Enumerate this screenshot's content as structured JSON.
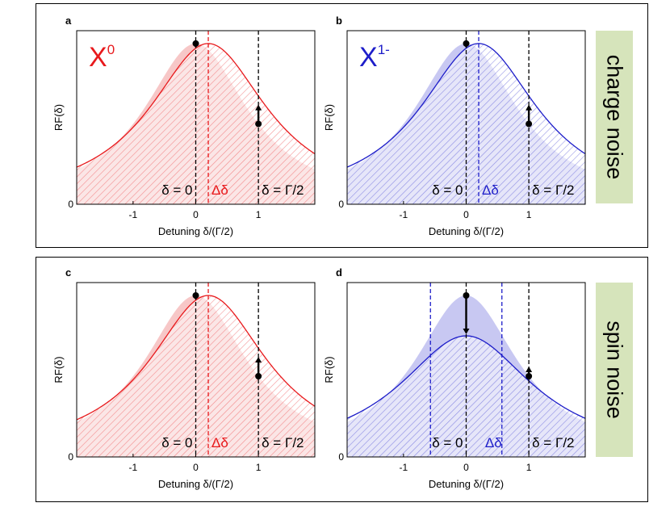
{
  "chart_data": [
    {
      "panel": "a",
      "type": "line",
      "series_color": "#e8191c",
      "fill_color": "#f7c7c7",
      "species_base": "X",
      "species_sup": "0",
      "ylabel": "RF(δ)",
      "xlabel": "Detuning δ/(Γ/2)",
      "xlim": [
        -1.9,
        1.9
      ],
      "ylim": [
        0,
        1.08
      ],
      "xticks": [
        {
          "v": -1,
          "label": "-1"
        },
        {
          "v": 0,
          "label": "0"
        },
        {
          "v": 1,
          "label": "1"
        }
      ],
      "yticks": [
        {
          "v": 0,
          "label": "0"
        }
      ],
      "filled_curve": {
        "center": 0,
        "height": 1.0,
        "width": 1.0
      },
      "line_curve": {
        "center": 0.2,
        "height": 1.0,
        "width": 1.15
      },
      "dashed_lines": [
        {
          "x": 0,
          "color": "#000000"
        },
        {
          "x": 0.2,
          "color": "#e8191c"
        },
        {
          "x": 1,
          "color": "#000000"
        }
      ],
      "arrows": [
        {
          "x": 0,
          "from": 1.0,
          "to": 0.97
        },
        {
          "x": 1,
          "from": 0.5,
          "to": 0.62
        }
      ],
      "annotations": [
        {
          "x": 0,
          "y": 0.06,
          "text": "δ = 0",
          "color": "#000000",
          "anchor": "end"
        },
        {
          "x": 0.2,
          "y": 0.06,
          "text": "Δδ",
          "color": "#e8191c",
          "anchor": "start"
        },
        {
          "x": 1,
          "y": 0.06,
          "text": "δ = Γ/2",
          "color": "#000000",
          "anchor": "start"
        }
      ]
    },
    {
      "panel": "b",
      "type": "line",
      "series_color": "#1d1dc9",
      "fill_color": "#c8c8f2",
      "species_base": "X",
      "species_sup": "1-",
      "ylabel": "RF(δ)",
      "xlabel": "Detuning δ/(Γ/2)",
      "xlim": [
        -1.9,
        1.9
      ],
      "ylim": [
        0,
        1.08
      ],
      "xticks": [
        {
          "v": -1,
          "label": "-1"
        },
        {
          "v": 0,
          "label": "0"
        },
        {
          "v": 1,
          "label": "1"
        }
      ],
      "yticks": [
        {
          "v": 0,
          "label": "0"
        }
      ],
      "filled_curve": {
        "center": 0,
        "height": 1.0,
        "width": 1.0
      },
      "line_curve": {
        "center": 0.2,
        "height": 1.0,
        "width": 1.15
      },
      "dashed_lines": [
        {
          "x": 0,
          "color": "#000000"
        },
        {
          "x": 0.2,
          "color": "#1d1dc9"
        },
        {
          "x": 1,
          "color": "#000000"
        }
      ],
      "arrows": [
        {
          "x": 0,
          "from": 1.0,
          "to": 0.97
        },
        {
          "x": 1,
          "from": 0.5,
          "to": 0.62
        }
      ],
      "annotations": [
        {
          "x": 0,
          "y": 0.06,
          "text": "δ = 0",
          "color": "#000000",
          "anchor": "end"
        },
        {
          "x": 0.2,
          "y": 0.06,
          "text": "Δδ",
          "color": "#1d1dc9",
          "anchor": "start"
        },
        {
          "x": 1,
          "y": 0.06,
          "text": "δ = Γ/2",
          "color": "#000000",
          "anchor": "start"
        }
      ]
    },
    {
      "panel": "c",
      "type": "line",
      "series_color": "#e8191c",
      "fill_color": "#f7c7c7",
      "species_base": "",
      "species_sup": "",
      "ylabel": "RF(δ)",
      "xlabel": "Detuning δ/(Γ/2)",
      "xlim": [
        -1.9,
        1.9
      ],
      "ylim": [
        0,
        1.08
      ],
      "xticks": [
        {
          "v": -1,
          "label": "-1"
        },
        {
          "v": 0,
          "label": "0"
        },
        {
          "v": 1,
          "label": "1"
        }
      ],
      "yticks": [
        {
          "v": 0,
          "label": "0"
        }
      ],
      "filled_curve": {
        "center": 0,
        "height": 1.0,
        "width": 1.0
      },
      "line_curve": {
        "center": 0.2,
        "height": 1.0,
        "width": 1.15
      },
      "dashed_lines": [
        {
          "x": 0,
          "color": "#000000"
        },
        {
          "x": 0.2,
          "color": "#e8191c"
        },
        {
          "x": 1,
          "color": "#000000"
        }
      ],
      "arrows": [
        {
          "x": 0,
          "from": 1.0,
          "to": 0.97
        },
        {
          "x": 1,
          "from": 0.5,
          "to": 0.62
        }
      ],
      "annotations": [
        {
          "x": 0,
          "y": 0.06,
          "text": "δ = 0",
          "color": "#000000",
          "anchor": "end"
        },
        {
          "x": 0.2,
          "y": 0.06,
          "text": "Δδ",
          "color": "#e8191c",
          "anchor": "start"
        },
        {
          "x": 1,
          "y": 0.06,
          "text": "δ = Γ/2",
          "color": "#000000",
          "anchor": "start"
        }
      ]
    },
    {
      "panel": "d",
      "type": "line",
      "series_color": "#1d1dc9",
      "fill_color": "#c8c8f2",
      "species_base": "",
      "species_sup": "",
      "ylabel": "RF(δ)",
      "xlabel": "Detuning δ/(Γ/2)",
      "xlim": [
        -1.9,
        1.9
      ],
      "ylim": [
        0,
        1.08
      ],
      "xticks": [
        {
          "v": -1,
          "label": "-1"
        },
        {
          "v": 0,
          "label": "0"
        },
        {
          "v": 1,
          "label": "1"
        }
      ],
      "yticks": [
        {
          "v": 0,
          "label": "0"
        }
      ],
      "filled_curve": {
        "center": 0,
        "height": 1.0,
        "width": 1.0
      },
      "line_curve": {
        "center": 0,
        "height": 0.75,
        "width": 1.3
      },
      "dashed_lines": [
        {
          "x": -0.57,
          "color": "#1d1dc9"
        },
        {
          "x": 0,
          "color": "#000000"
        },
        {
          "x": 0.57,
          "color": "#1d1dc9"
        },
        {
          "x": 1,
          "color": "#000000"
        }
      ],
      "arrows": [
        {
          "x": 0,
          "from": 1.0,
          "to": 0.76
        },
        {
          "x": 1,
          "from": 0.5,
          "to": 0.56
        }
      ],
      "annotations": [
        {
          "x": 0,
          "y": 0.06,
          "text": "δ = 0",
          "color": "#000000",
          "anchor": "end"
        },
        {
          "x": 0.25,
          "y": 0.06,
          "text": "Δδ",
          "color": "#1d1dc9",
          "anchor": "start"
        },
        {
          "x": 1,
          "y": 0.06,
          "text": "δ = Γ/2",
          "color": "#000000",
          "anchor": "start"
        }
      ]
    }
  ],
  "side_labels": {
    "top": "charge noise",
    "bottom": "spin noise"
  }
}
